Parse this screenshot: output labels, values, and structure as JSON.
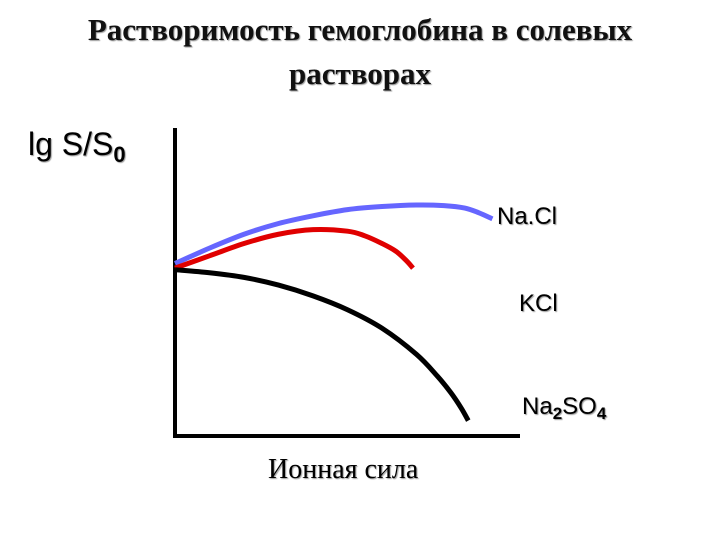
{
  "title_line1": "Растворимость гемоглобина в солевых",
  "title_line2": "растворах",
  "chart_data": {
    "type": "line",
    "title": "Растворимость гемоглобина в солевых растворах",
    "xlabel": "Ионная сила",
    "ylabel": {
      "base": "lg S/S",
      "sub": "0"
    },
    "xlim": [
      0,
      1
    ],
    "ylim": [
      0,
      1
    ],
    "grid": false,
    "series": [
      {
        "name": "Na.Cl",
        "label_parts": [
          "Na.Cl"
        ],
        "color": "#6666ff",
        "x": [
          0,
          0.1,
          0.2,
          0.3,
          0.4,
          0.5,
          0.6,
          0.7,
          0.78,
          0.84,
          0.88,
          0.92
        ],
        "y": [
          0.56,
          0.61,
          0.655,
          0.69,
          0.715,
          0.735,
          0.745,
          0.75,
          0.748,
          0.74,
          0.725,
          0.705
        ]
      },
      {
        "name": "KCl",
        "label_parts": [
          "KCl"
        ],
        "color": "#e00000",
        "x": [
          0,
          0.1,
          0.2,
          0.3,
          0.4,
          0.5,
          0.55,
          0.6,
          0.64,
          0.67,
          0.69
        ],
        "y": [
          0.545,
          0.585,
          0.625,
          0.655,
          0.67,
          0.665,
          0.65,
          0.625,
          0.6,
          0.57,
          0.545
        ]
      },
      {
        "name": "Na2SO4",
        "label_parts": [
          "Na",
          "2",
          "SO",
          "4"
        ],
        "color": "#000000",
        "x": [
          0,
          0.1,
          0.2,
          0.3,
          0.4,
          0.5,
          0.6,
          0.7,
          0.76,
          0.8,
          0.83,
          0.85
        ],
        "y": [
          0.54,
          0.53,
          0.515,
          0.49,
          0.455,
          0.41,
          0.35,
          0.265,
          0.195,
          0.14,
          0.09,
          0.05
        ]
      }
    ]
  }
}
